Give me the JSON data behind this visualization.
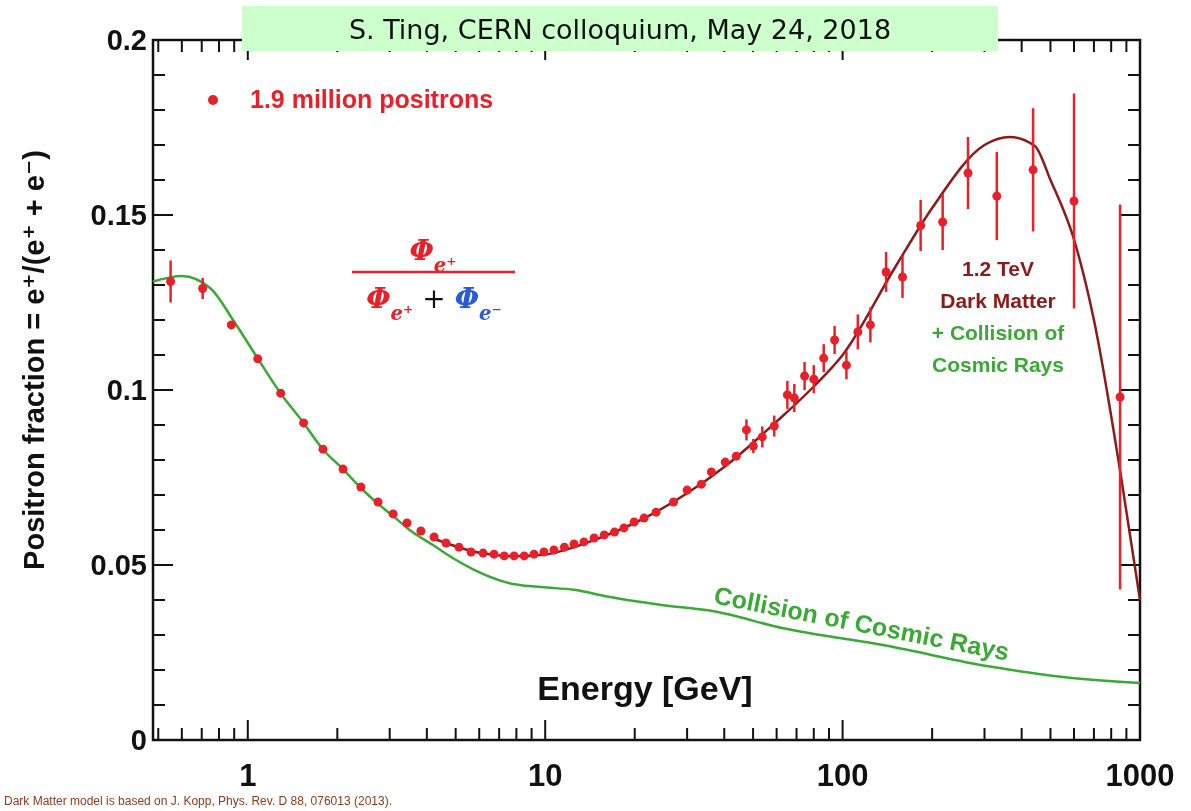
{
  "chart_data": {
    "type": "scatter",
    "title": "S. Ting, CERN colloquium, May 24, 2018",
    "xlabel": "Energy [GeV]",
    "ylabel": "Positron fraction = e⁺/(e⁺ + e⁻)",
    "annotations": [
      "Φ$_{e⁺}$",
      "Φ$_{e⁺}$ + Φ$_{e⁻}$",
      "Dark Matter model is based on J. Kopp, Phys. Rev. D 88, 076013 (2013)."
    ],
    "log": "x",
    "grid": false,
    "legend": "top left",
    "marker": "circle",
    "xlim": [
      0.48,
      1000
    ],
    "ylim": [
      0,
      0.2
    ],
    "xticks": [
      {
        "value": 0.5,
        "label": null
      },
      {
        "value": 0.6,
        "label": null
      },
      {
        "value": 0.7,
        "label": null
      },
      {
        "value": 0.8,
        "label": null
      },
      {
        "value": 0.9,
        "label": null
      },
      1,
      {
        "value": 2,
        "label": null
      },
      {
        "value": 3,
        "label": null
      },
      {
        "value": 4,
        "label": null
      },
      {
        "value": 5,
        "label": null
      },
      {
        "value": 6,
        "label": null
      },
      {
        "value": 7,
        "label": null
      },
      {
        "value": 8,
        "label": null
      },
      {
        "value": 9,
        "label": null
      },
      10,
      {
        "value": 20,
        "label": null
      },
      {
        "value": 30,
        "label": null
      },
      {
        "value": 40,
        "label": null
      },
      {
        "value": 50,
        "label": null
      },
      {
        "value": 60,
        "label": null
      },
      {
        "value": 70,
        "label": null
      },
      {
        "value": 80,
        "label": null
      },
      {
        "value": 90,
        "label": null
      },
      100,
      {
        "value": 200,
        "label": null
      },
      {
        "value": 300,
        "label": null
      },
      {
        "value": 400,
        "label": null
      },
      {
        "value": 500,
        "label": null
      },
      {
        "value": 600,
        "label": null
      },
      {
        "value": 700,
        "label": null
      },
      {
        "value": 800,
        "label": null
      },
      {
        "value": 900,
        "label": null
      },
      1000
    ],
    "yticks": [
      0,
      {
        "value": 0.01,
        "label": null
      },
      {
        "value": 0.02,
        "label": null
      },
      {
        "value": 0.03,
        "label": null
      },
      {
        "value": 0.04,
        "label": null
      },
      0.05,
      {
        "value": 0.06,
        "label": null
      },
      {
        "value": 0.07,
        "label": null
      },
      {
        "value": 0.08,
        "label": null
      },
      {
        "value": 0.09,
        "label": null
      },
      0.1,
      {
        "value": 0.11,
        "label": null
      },
      {
        "value": 0.12,
        "label": null
      },
      {
        "value": 0.13,
        "label": null
      },
      {
        "value": 0.14,
        "label": null
      },
      0.15,
      {
        "value": 0.16,
        "label": null
      },
      {
        "value": 0.17,
        "label": null
      },
      {
        "value": 0.18,
        "label": null
      },
      {
        "value": 0.19,
        "label": null
      },
      0.2
    ],
    "series": [
      {
        "type": "line",
        "name": "Collision of Cosmic Rays",
        "color": "#3aa935",
        "marker": "none",
        "x": [
          0.48,
          0.6,
          0.75,
          0.9,
          1.08,
          1.29,
          1.54,
          1.79,
          2.09,
          2.4,
          2.74,
          3.08,
          3.5,
          4.23,
          5.0,
          5.77,
          7.5,
          9.7,
          12.5,
          16.3,
          24.6,
          36.2,
          62.6,
          141,
          317,
          550,
          1000
        ],
        "values": [
          0.131,
          0.1326,
          0.129,
          0.1195,
          0.109,
          0.099,
          0.0906,
          0.083,
          0.0774,
          0.072,
          0.0675,
          0.064,
          0.06,
          0.0555,
          0.0515,
          0.0486,
          0.0449,
          0.0437,
          0.0429,
          0.0409,
          0.0386,
          0.0369,
          0.032,
          0.0269,
          0.0209,
          0.018,
          0.0163
        ]
      },
      {
        "type": "line",
        "name": "1.2 TeV Dark Matter + Collision of Cosmic Rays",
        "color": "#8b1a1a",
        "marker": "none",
        "x": [
          4.23,
          6,
          8,
          10,
          15,
          20,
          30,
          40,
          60,
          80,
          100,
          150,
          200,
          300,
          365,
          443,
          500,
          600,
          700,
          857,
          1000
        ],
        "values": [
          0.0575,
          0.0535,
          0.0525,
          0.053,
          0.0575,
          0.062,
          0.0705,
          0.078,
          0.091,
          0.101,
          0.11,
          0.135,
          0.152,
          0.17,
          0.1723,
          0.1697,
          0.16,
          0.143,
          0.12,
          0.077,
          0.04
        ]
      },
      {
        "name": "1.9 million positrons",
        "color": "#e8202a",
        "x": [
          0.55,
          0.705,
          0.88,
          1.08,
          1.29,
          1.54,
          1.79,
          2.09,
          2.4,
          2.74,
          3.08,
          3.43,
          3.82,
          4.23,
          4.64,
          5.13,
          5.63,
          6.18,
          6.73,
          7.28,
          7.86,
          8.5,
          9.17,
          9.9,
          10.7,
          11.6,
          12.5,
          13.5,
          14.6,
          15.8,
          17.1,
          18.4,
          19.9,
          21.5,
          23.6,
          27,
          30,
          33.5,
          36.2,
          40.3,
          43.9,
          47.5,
          50.1,
          53.7,
          58.9,
          65.2,
          68.8,
          74.5,
          80,
          86.4,
          94,
          103,
          112.5,
          124,
          140,
          159,
          183,
          217,
          264,
          330,
          437,
          600,
          857
        ],
        "values": [
          0.131,
          0.129,
          0.1186,
          0.1089,
          0.0991,
          0.0906,
          0.0831,
          0.0774,
          0.0723,
          0.068,
          0.0646,
          0.062,
          0.0597,
          0.058,
          0.0563,
          0.0551,
          0.0537,
          0.0534,
          0.0531,
          0.0526,
          0.0526,
          0.0526,
          0.0531,
          0.0537,
          0.0543,
          0.0551,
          0.056,
          0.0566,
          0.0577,
          0.0586,
          0.0594,
          0.0606,
          0.0623,
          0.0634,
          0.0651,
          0.068,
          0.0714,
          0.0731,
          0.0766,
          0.0794,
          0.0811,
          0.0886,
          0.084,
          0.0866,
          0.0897,
          0.0986,
          0.0977,
          0.104,
          0.1031,
          0.1091,
          0.1143,
          0.1071,
          0.1166,
          0.1186,
          0.1337,
          0.1323,
          0.147,
          0.148,
          0.162,
          0.1554,
          0.1629,
          0.154,
          0.098
        ],
        "errors": [
          0.006,
          0.003,
          null,
          null,
          null,
          null,
          null,
          null,
          null,
          null,
          null,
          null,
          null,
          null,
          null,
          null,
          null,
          null,
          null,
          null,
          null,
          null,
          null,
          null,
          null,
          null,
          null,
          null,
          null,
          null,
          null,
          null,
          null,
          null,
          null,
          null,
          null,
          null,
          null,
          null,
          null,
          0.003,
          0.002,
          0.003,
          0.003,
          0.004,
          0.004,
          0.004,
          0.004,
          0.004,
          0.004,
          0.004,
          0.005,
          0.005,
          0.0057,
          0.006,
          0.0073,
          0.008,
          0.0103,
          0.0126,
          0.0176,
          0.0307,
          0.055
        ]
      }
    ]
  }
}
